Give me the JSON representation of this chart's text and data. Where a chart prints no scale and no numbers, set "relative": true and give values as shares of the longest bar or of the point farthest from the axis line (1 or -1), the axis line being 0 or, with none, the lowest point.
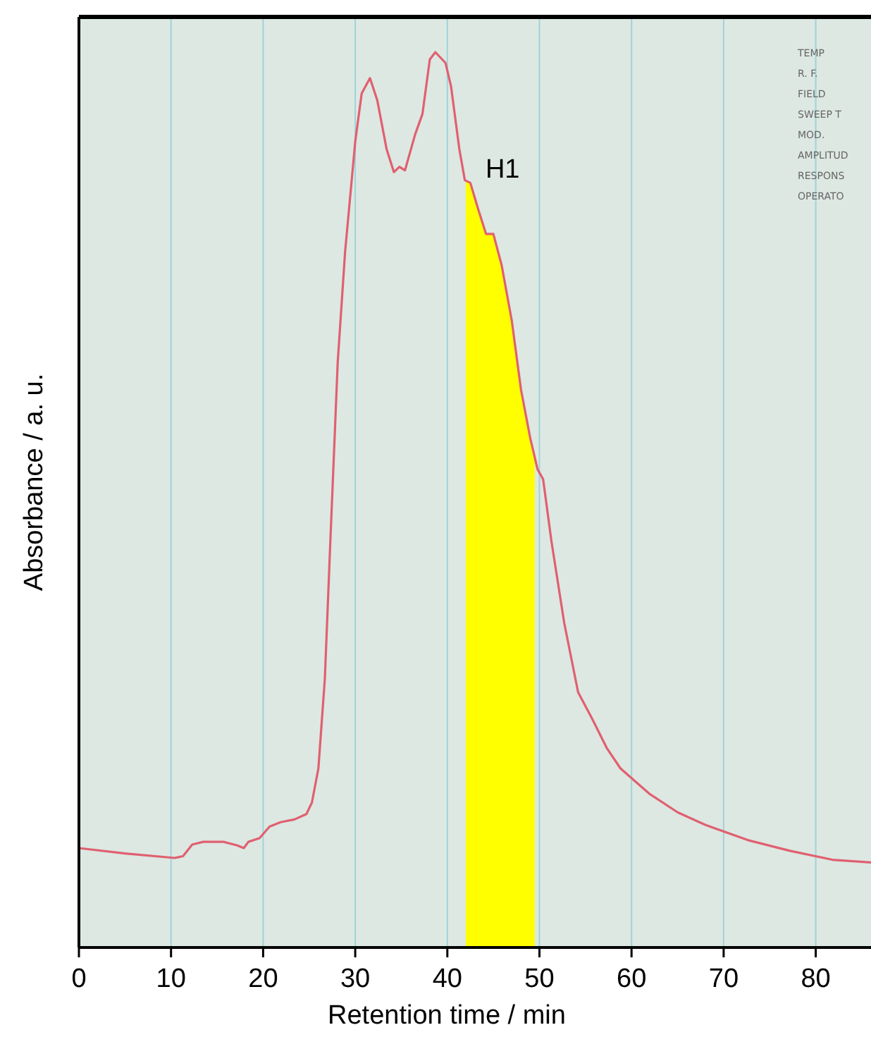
{
  "chart_data": {
    "type": "line",
    "xlabel": "Retention time / min",
    "ylabel": "Absorbance / a. u.",
    "relative": true,
    "xlim": [
      0,
      86
    ],
    "xticks": [
      0,
      10,
      20,
      30,
      40,
      50,
      60,
      70,
      80
    ],
    "grid": "x",
    "line_style": "solid",
    "x": [
      0,
      5,
      10.4,
      11.3,
      12.3,
      13.5,
      15.7,
      17.2,
      17.9,
      18.4,
      19.6,
      20.7,
      21.9,
      23.4,
      24.7,
      25.3,
      26,
      26.7,
      27.3,
      28.1,
      28.9,
      30,
      30.7,
      31.6,
      32.4,
      33.4,
      34.2,
      34.8,
      35.4,
      36.5,
      37.3,
      38.1,
      38.7,
      39.8,
      40.4,
      41.3,
      41.9,
      42.5,
      43.4,
      44.2,
      45,
      45.9,
      47,
      48,
      49,
      49.8,
      50.4,
      51.3,
      52.7,
      54.2,
      55.8,
      57.3,
      58.8,
      61.9,
      65,
      68,
      72.6,
      77.2,
      81.8,
      86
    ],
    "series": [
      {
        "color": "#e06070",
        "values": [
          0.111,
          0.105,
          0.1,
          0.102,
          0.115,
          0.118,
          0.118,
          0.114,
          0.111,
          0.118,
          0.122,
          0.135,
          0.14,
          0.143,
          0.149,
          0.162,
          0.2,
          0.3,
          0.454,
          0.654,
          0.777,
          0.9,
          0.954,
          0.971,
          0.946,
          0.892,
          0.866,
          0.872,
          0.868,
          0.908,
          0.931,
          0.992,
          1,
          0.988,
          0.962,
          0.892,
          0.857,
          0.854,
          0.823,
          0.797,
          0.797,
          0.762,
          0.7,
          0.623,
          0.569,
          0.534,
          0.523,
          0.454,
          0.362,
          0.285,
          0.254,
          0.223,
          0.2,
          0.172,
          0.151,
          0.137,
          0.12,
          0.108,
          0.098,
          0.095
        ]
      }
    ],
    "bands": [
      {
        "axis": "x",
        "from": 42,
        "to": 49.5,
        "label": "H1",
        "color": "#ffff00"
      }
    ],
    "annotations": [
      "TEMP",
      "R. F.",
      "FIELD",
      "SWEEP T",
      "MOD.",
      "AMPLITUD",
      "RESPONS",
      "OPERATO"
    ]
  }
}
